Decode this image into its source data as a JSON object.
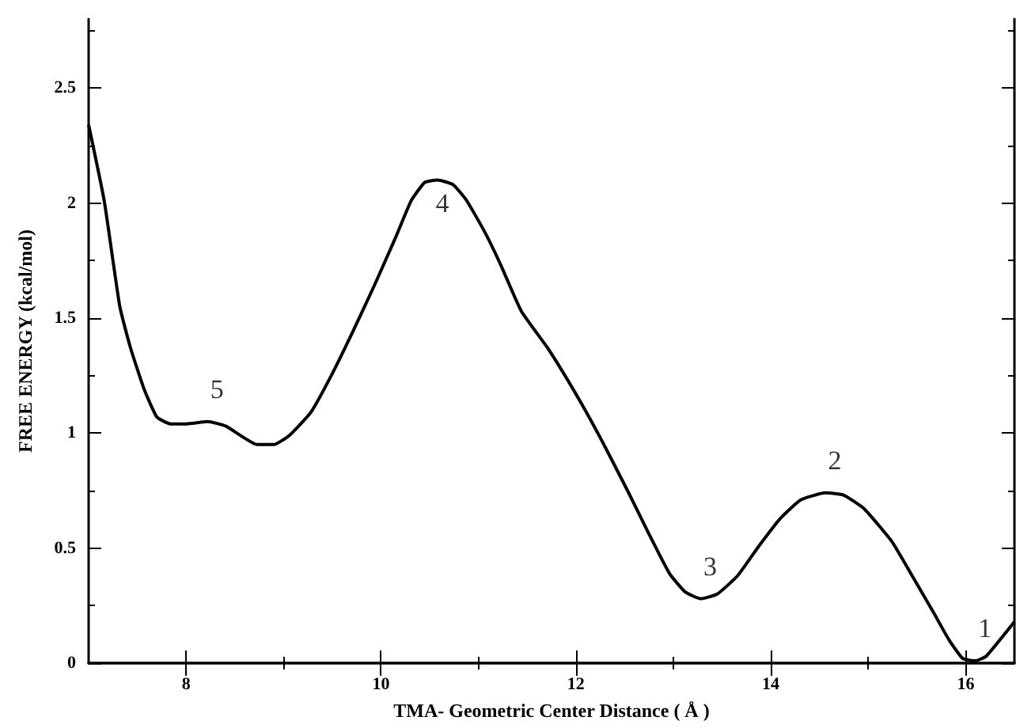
{
  "chart_data": {
    "type": "line",
    "xlabel": "TMA- Geometric Center Distance ( Å )",
    "ylabel": "FREE ENERGY (kcal/mol)",
    "x": [
      7.0,
      7.16,
      7.32,
      7.43,
      7.57,
      7.7,
      7.84,
      8.0,
      8.22,
      8.41,
      8.73,
      8.9,
      9.06,
      9.28,
      9.49,
      9.71,
      9.93,
      10.15,
      10.31,
      10.45,
      10.58,
      10.74,
      10.88,
      11.07,
      11.23,
      11.44,
      11.71,
      12.0,
      12.25,
      12.53,
      12.74,
      12.96,
      13.12,
      13.28,
      13.45,
      13.66,
      13.88,
      14.1,
      14.31,
      14.56,
      14.75,
      14.96,
      15.24,
      15.45,
      15.67,
      15.83,
      15.97,
      16.1,
      16.21,
      16.5
    ],
    "series": [
      {
        "color": "#000000",
        "values": [
          2.34,
          2.01,
          1.55,
          1.37,
          1.19,
          1.07,
          1.04,
          1.04,
          1.05,
          1.03,
          0.95,
          0.95,
          0.99,
          1.09,
          1.25,
          1.44,
          1.64,
          1.85,
          2.01,
          2.09,
          2.1,
          2.08,
          2.01,
          1.87,
          1.73,
          1.53,
          1.37,
          1.17,
          0.98,
          0.75,
          0.57,
          0.39,
          0.31,
          0.28,
          0.3,
          0.38,
          0.51,
          0.63,
          0.71,
          0.74,
          0.73,
          0.67,
          0.53,
          0.38,
          0.22,
          0.1,
          0.02,
          0.01,
          0.03,
          0.18
        ]
      }
    ],
    "xlim": [
      7,
      16.5
    ],
    "xticks": [
      8,
      10,
      12,
      14,
      16
    ],
    "ylim": [
      0,
      2.8
    ],
    "yticks": [
      0,
      0.5,
      1,
      1.5,
      2,
      2.5
    ],
    "annotations": [
      {
        "text": "5",
        "x": 8.22,
        "y": 1.05
      },
      {
        "text": "4",
        "x": 10.58,
        "y": 2.1
      },
      {
        "text": "3",
        "x": 13.28,
        "y": 0.28
      },
      {
        "text": "2",
        "x": 14.56,
        "y": 0.74
      },
      {
        "text": "1",
        "x": 16.1,
        "y": 0.01
      }
    ],
    "marker": "none",
    "line_style": "solid"
  }
}
